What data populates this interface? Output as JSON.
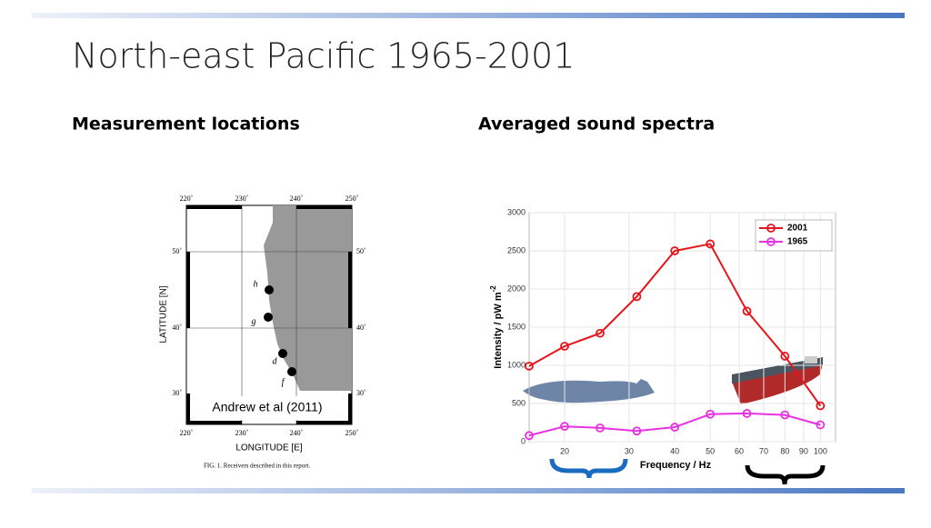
{
  "header": {
    "title": "North-east Pacific 1965-2001"
  },
  "sections": [
    {
      "heading": "Measurement locations"
    },
    {
      "heading": "Averaged sound spectra"
    }
  ],
  "map": {
    "lon_top": [
      "220˚",
      "230˚",
      "240˚",
      "250˚"
    ],
    "lon_bottom": [
      "220˚",
      "230˚",
      "240˚",
      "250˚"
    ],
    "lat_left": [
      "50˚",
      "40˚",
      "30˚"
    ],
    "lat_right": [
      "50˚",
      "40˚",
      "30˚"
    ],
    "ylabel": "LATITUDE [N]",
    "xlabel": "LONGITUDE [E]",
    "receivers": [
      "h",
      "g",
      "d",
      "f"
    ],
    "credit": "Andrew et al (2011)",
    "caption": "FIG. 1.  Receivers described in this report."
  },
  "chart": {
    "type": "line",
    "x": [
      16,
      20,
      25,
      31.5,
      40,
      50,
      63,
      80,
      100
    ],
    "series": [
      {
        "name": "2001",
        "color": "#e8141b",
        "values": [
          990,
          1250,
          1420,
          1900,
          2500,
          2590,
          1710,
          1120,
          470
        ]
      },
      {
        "name": "1965",
        "color": "#e831e0",
        "values": [
          80,
          200,
          180,
          140,
          190,
          360,
          370,
          350,
          220
        ]
      }
    ],
    "xlim": [
      16,
      110
    ],
    "xticks": [
      20,
      30,
      40,
      50,
      60,
      70,
      80,
      90,
      100
    ],
    "log_x": true,
    "ylim": [
      0,
      3000
    ],
    "yticks": [
      0,
      500,
      1000,
      1500,
      2000,
      2500,
      3000
    ],
    "xlabel": "Frequency / Hz",
    "ylabel": "Intensity / pW m",
    "ylabel_sup": "-2",
    "grid": true,
    "legend": "top-right"
  }
}
